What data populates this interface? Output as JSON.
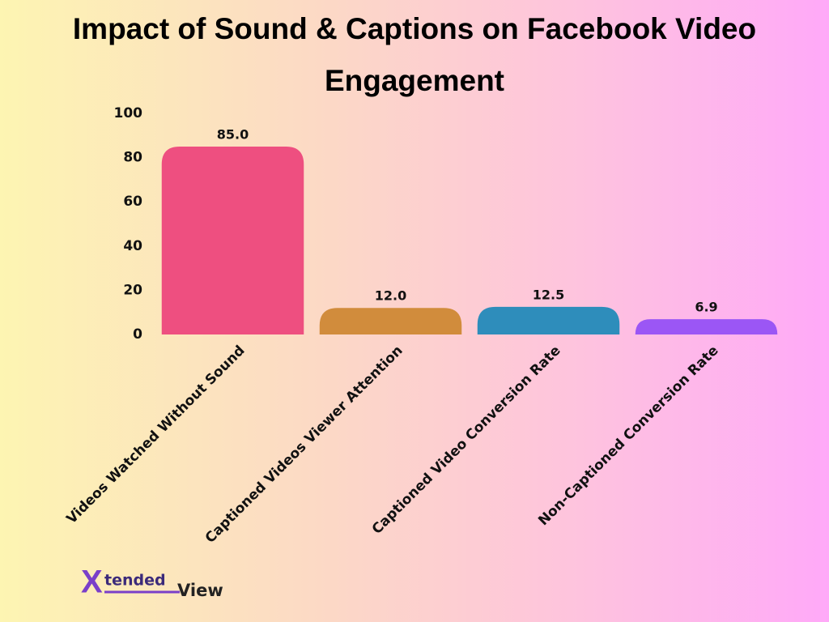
{
  "chart_data": {
    "type": "bar",
    "title": "Impact of Sound & Captions on Facebook Video Engagement",
    "categories": [
      "Videos Watched Without Sound",
      "Captioned Videos Viewer Attention",
      "Captioned Video Conversion Rate",
      "Non-Captioned Conversion Rate"
    ],
    "values": [
      85.0,
      12.0,
      12.5,
      6.9
    ],
    "value_labels": [
      "85.0",
      "12.0",
      "12.5",
      "6.9"
    ],
    "colors": [
      "#ee4f80",
      "#d18c3c",
      "#2e8dbb",
      "#9b56f5"
    ],
    "ylim": [
      0,
      100
    ],
    "yticks": [
      0,
      20,
      40,
      60,
      80,
      100
    ],
    "grid": false,
    "logo": {
      "letter": "X",
      "word": "tended",
      "suffix": "View"
    }
  }
}
